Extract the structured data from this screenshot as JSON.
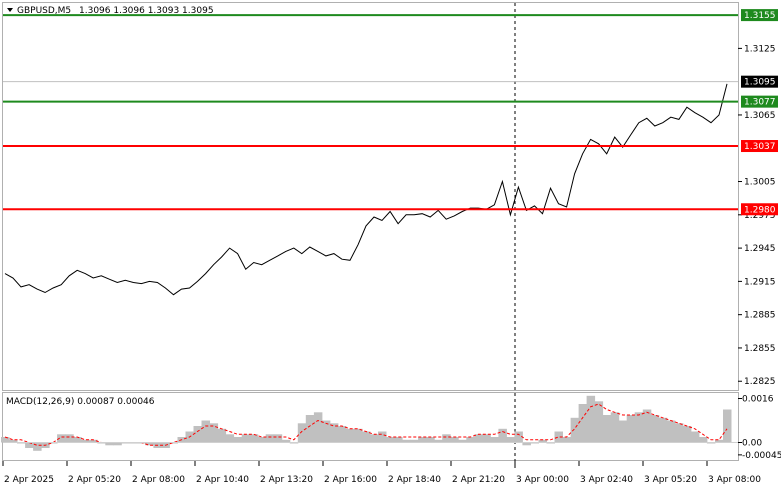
{
  "header": {
    "symbol": "GBPUSD,M5",
    "ohlc": "1.3096 1.3096 1.3093 1.3095",
    "dropdown_icon": "triangle-down-icon"
  },
  "price_axis": {
    "ticks": [
      "1.3125",
      "1.3065",
      "1.3005",
      "1.2975",
      "1.2945",
      "1.2915",
      "1.2885",
      "1.2855",
      "1.2825"
    ],
    "current_price": "1.3095"
  },
  "levels": [
    {
      "label": "1.3155",
      "value": 1.3155,
      "color": "#1e8a1e",
      "kind": "target"
    },
    {
      "label": "1.3077",
      "value": 1.3077,
      "color": "#1e8a1e",
      "kind": "entry"
    },
    {
      "label": "1.3037",
      "value": 1.3037,
      "color": "#ff0000",
      "kind": "entry"
    },
    {
      "label": "1.2980",
      "value": 1.298,
      "color": "#ff0000",
      "kind": "target"
    }
  ],
  "macd": {
    "label": "MACD(12,26,9) 0.00087 0.00046",
    "ticks": [
      "0.0016",
      "0.00",
      "-0.00045"
    ]
  },
  "time_axis": {
    "labels": [
      "2 Apr 2025",
      "2 Apr 05:20",
      "2 Apr 08:00",
      "2 Apr 10:40",
      "2 Apr 13:20",
      "2 Apr 16:00",
      "2 Apr 18:40",
      "2 Apr 21:20",
      "3 Apr 00:00",
      "3 Apr 02:40",
      "3 Apr 05:20",
      "3 Apr 08:00"
    ]
  },
  "chart_data": {
    "type": "line",
    "price_range": [
      1.2818,
      1.3165
    ],
    "macd_range": [
      -0.0006,
      0.0018
    ],
    "price_series": [
      1.2922,
      1.2918,
      1.291,
      1.2912,
      1.2908,
      1.2905,
      1.2909,
      1.2912,
      1.292,
      1.2925,
      1.2922,
      1.2918,
      1.292,
      1.2917,
      1.2914,
      1.2916,
      1.2914,
      1.2913,
      1.2915,
      1.2914,
      1.2909,
      1.2903,
      1.2908,
      1.2909,
      1.2915,
      1.2922,
      1.293,
      1.2937,
      1.2945,
      1.294,
      1.2926,
      1.2932,
      1.293,
      1.2934,
      1.2938,
      1.2942,
      1.2945,
      1.294,
      1.2946,
      1.2942,
      1.2938,
      1.294,
      1.2935,
      1.2934,
      1.2948,
      1.2965,
      1.2973,
      1.297,
      1.2978,
      1.2967,
      1.2975,
      1.2975,
      1.2976,
      1.2973,
      1.2979,
      1.2971,
      1.2974,
      1.2978,
      1.2981,
      1.2981,
      1.298,
      1.2984,
      1.3005,
      1.2975,
      1.3,
      1.2979,
      1.2983,
      1.2976,
      1.2999,
      1.2985,
      1.2982,
      1.3012,
      1.303,
      1.3043,
      1.3039,
      1.303,
      1.3045,
      1.3036,
      1.3047,
      1.3058,
      1.3062,
      1.3055,
      1.3058,
      1.3063,
      1.3061,
      1.3072,
      1.3067,
      1.3063,
      1.3058,
      1.3065,
      1.3093
    ],
    "macd_hist": [
      0.0002,
      0.0001,
      0.0,
      -0.0002,
      -0.0003,
      -0.0002,
      0.0,
      0.0003,
      0.0003,
      0.0002,
      0.0001,
      0.0001,
      0.0,
      -0.0001,
      -0.0001,
      0.0,
      0.0,
      0.0,
      -0.0001,
      -0.0002,
      -0.0002,
      0.0,
      0.0002,
      0.0004,
      0.0006,
      0.0008,
      0.0007,
      0.0005,
      0.0003,
      0.0002,
      0.0003,
      0.0003,
      0.0002,
      0.0003,
      0.0003,
      0.0001,
      0.0,
      0.0007,
      0.001,
      0.0011,
      0.0008,
      0.0007,
      0.0006,
      0.0005,
      0.0005,
      0.0004,
      0.0003,
      0.0004,
      0.0002,
      0.0002,
      0.0001,
      0.0001,
      0.0002,
      0.0002,
      0.0001,
      0.0003,
      0.0002,
      0.0001,
      0.0002,
      0.0003,
      0.0003,
      0.0002,
      0.0005,
      0.0002,
      0.0004,
      -0.0001,
      0.0,
      0.0001,
      0.0,
      0.0004,
      0.0002,
      0.0009,
      0.0014,
      0.0017,
      0.0015,
      0.001,
      0.0011,
      0.0008,
      0.001,
      0.0011,
      0.0012,
      0.001,
      0.0009,
      0.0008,
      0.0007,
      0.0006,
      0.0004,
      0.0002,
      0.0,
      0.0001,
      0.0012
    ],
    "macd_signal": [
      0.0002,
      0.0001,
      0.0001,
      0.0,
      -0.0001,
      -0.0001,
      0.0,
      0.0002,
      0.0002,
      0.0002,
      0.0001,
      0.0001,
      0.0,
      0.0,
      0.0,
      0.0,
      0.0,
      0.0,
      -0.0001,
      -0.0001,
      -0.0001,
      0.0,
      0.0001,
      0.0002,
      0.0004,
      0.0006,
      0.0006,
      0.0005,
      0.0004,
      0.0003,
      0.0003,
      0.0003,
      0.0002,
      0.0002,
      0.0002,
      0.0002,
      0.0001,
      0.0004,
      0.0006,
      0.0008,
      0.0007,
      0.0006,
      0.0006,
      0.0005,
      0.0005,
      0.0004,
      0.0003,
      0.0003,
      0.0002,
      0.0002,
      0.0002,
      0.0002,
      0.0002,
      0.0002,
      0.0002,
      0.0002,
      0.0002,
      0.0002,
      0.0002,
      0.0003,
      0.0003,
      0.0003,
      0.0004,
      0.0003,
      0.0003,
      0.0001,
      0.0001,
      0.0001,
      0.0001,
      0.0002,
      0.0002,
      0.0005,
      0.0009,
      0.0013,
      0.0014,
      0.0012,
      0.0011,
      0.001,
      0.001,
      0.001,
      0.0011,
      0.001,
      0.0009,
      0.0008,
      0.0007,
      0.0006,
      0.0005,
      0.0003,
      0.0001,
      0.0001,
      0.0005
    ]
  }
}
